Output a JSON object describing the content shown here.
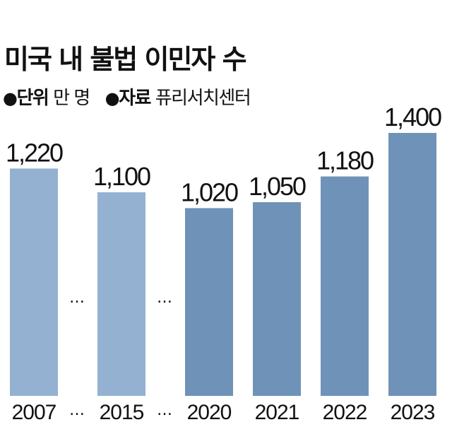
{
  "header": {
    "title": "미국 내 불법 이민자 수",
    "unit_key": "단위",
    "unit_value": "만 명",
    "source_key": "자료",
    "source_value": "퓨리서치센터",
    "bullet": "●"
  },
  "gap_marker": "…",
  "colors": {
    "past": "#94b1d2",
    "recent": "#6f93b8"
  },
  "chart_data": {
    "type": "bar",
    "title": "미국 내 불법 이민자 수",
    "unit": "만 명",
    "source": "퓨리서치센터",
    "categories": [
      "2007",
      "2015",
      "2020",
      "2021",
      "2022",
      "2023"
    ],
    "values": [
      1220,
      1100,
      1020,
      1050,
      1180,
      1400
    ],
    "value_labels": [
      "1,220",
      "1,100",
      "1,020",
      "1,050",
      "1,180",
      "1,400"
    ],
    "gaps_after": [
      "2007",
      "2015"
    ],
    "ylim": [
      0,
      1400
    ],
    "grid": false,
    "xlabel": "",
    "ylabel": ""
  }
}
